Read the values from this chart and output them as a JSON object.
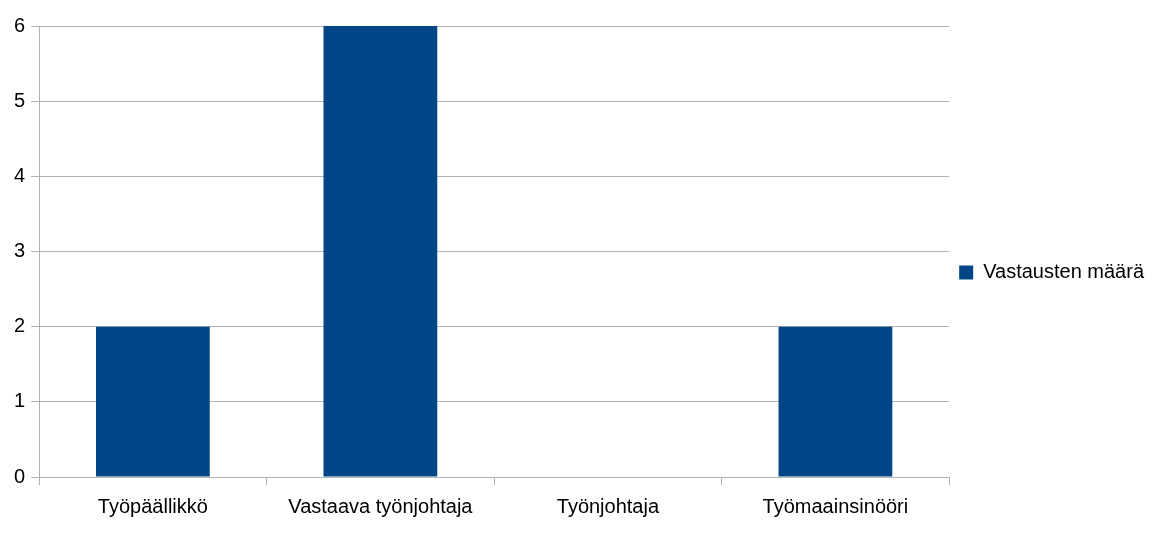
{
  "chart_data": {
    "type": "bar",
    "categories": [
      "Työpäällikkö",
      "Vastaava työnjohtaja",
      "Työnjohtaja",
      "Työmaainsinööri"
    ],
    "series": [
      {
        "name": "Vastausten määrä",
        "color": "#004586",
        "values": [
          2,
          6,
          0,
          2
        ]
      }
    ],
    "ylim": [
      0,
      6
    ],
    "yticks": [
      0,
      1,
      2,
      3,
      4,
      5,
      6
    ],
    "grid": "y",
    "legend": "right"
  }
}
